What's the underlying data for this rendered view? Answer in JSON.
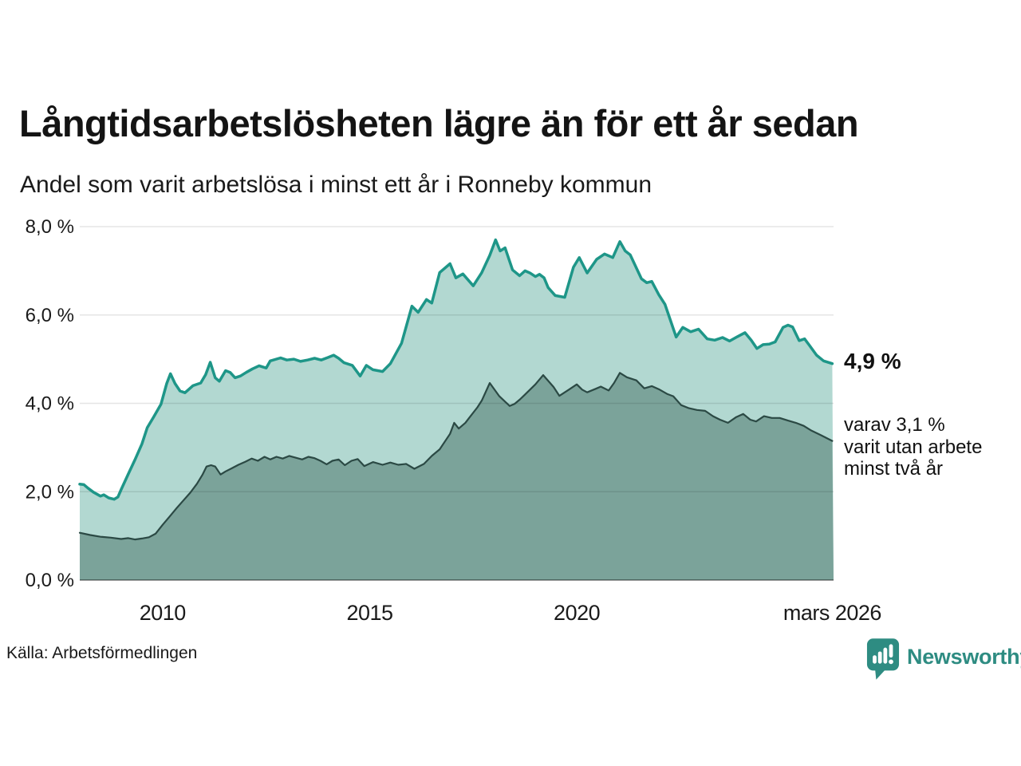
{
  "header": {
    "title": "Långtidsarbetslösheten lägre än för ett år sedan",
    "subtitle": "Andel som varit arbetslösa i minst ett år i Ronneby kommun"
  },
  "chart_data": {
    "type": "area",
    "title": "Långtidsarbetslösheten lägre än för ett år sedan",
    "subtitle": "Andel som varit arbetslösa i minst ett år i Ronneby kommun",
    "xlabel": "",
    "ylabel": "",
    "grid": true,
    "legend_position": "none",
    "x_domain": [
      2008.0,
      2026.2
    ],
    "ylim": [
      0,
      8
    ],
    "y_ticks": [
      {
        "value": 0,
        "label": "0,0 %"
      },
      {
        "value": 2,
        "label": "2,0 %"
      },
      {
        "value": 4,
        "label": "4,0 %"
      },
      {
        "value": 6,
        "label": "6,0 %"
      },
      {
        "value": 8,
        "label": "8,0 %"
      }
    ],
    "x_ticks": [
      {
        "value": 2010,
        "label": "2010"
      },
      {
        "value": 2015,
        "label": "2015"
      },
      {
        "value": 2020,
        "label": "2020"
      },
      {
        "value": 2026.17,
        "label": "mars 2026"
      }
    ],
    "colors": {
      "gridline": "rgba(0,0,0,0.10)",
      "baseline": "rgba(0,0,0,0.50)",
      "axis_text": "#1a1a1a"
    },
    "series": [
      {
        "name": "Arbetslösa minst ett år",
        "latest_value": "4,9 %",
        "line_color": "#1e9688",
        "fill_color": "#b2d8d1",
        "line_width": 3.5,
        "points": [
          [
            2008.0,
            2.17
          ],
          [
            2008.1,
            2.16
          ],
          [
            2008.2,
            2.08
          ],
          [
            2008.33,
            1.99
          ],
          [
            2008.5,
            1.9
          ],
          [
            2008.58,
            1.93
          ],
          [
            2008.7,
            1.86
          ],
          [
            2008.83,
            1.83
          ],
          [
            2008.92,
            1.88
          ],
          [
            2009.0,
            2.05
          ],
          [
            2009.17,
            2.4
          ],
          [
            2009.33,
            2.72
          ],
          [
            2009.5,
            3.08
          ],
          [
            2009.63,
            3.45
          ],
          [
            2009.79,
            3.7
          ],
          [
            2009.96,
            3.98
          ],
          [
            2010.1,
            4.45
          ],
          [
            2010.19,
            4.67
          ],
          [
            2010.3,
            4.45
          ],
          [
            2010.42,
            4.28
          ],
          [
            2010.54,
            4.24
          ],
          [
            2010.73,
            4.4
          ],
          [
            2010.92,
            4.46
          ],
          [
            2011.04,
            4.65
          ],
          [
            2011.15,
            4.93
          ],
          [
            2011.27,
            4.58
          ],
          [
            2011.37,
            4.5
          ],
          [
            2011.52,
            4.74
          ],
          [
            2011.63,
            4.7
          ],
          [
            2011.75,
            4.58
          ],
          [
            2011.88,
            4.62
          ],
          [
            2012.02,
            4.7
          ],
          [
            2012.17,
            4.78
          ],
          [
            2012.33,
            4.85
          ],
          [
            2012.5,
            4.8
          ],
          [
            2012.6,
            4.96
          ],
          [
            2012.85,
            5.03
          ],
          [
            2013.0,
            4.98
          ],
          [
            2013.17,
            5.0
          ],
          [
            2013.33,
            4.95
          ],
          [
            2013.5,
            4.98
          ],
          [
            2013.67,
            5.02
          ],
          [
            2013.83,
            4.98
          ],
          [
            2014.0,
            5.04
          ],
          [
            2014.13,
            5.09
          ],
          [
            2014.25,
            5.02
          ],
          [
            2014.38,
            4.92
          ],
          [
            2014.58,
            4.86
          ],
          [
            2014.77,
            4.62
          ],
          [
            2014.92,
            4.86
          ],
          [
            2015.08,
            4.76
          ],
          [
            2015.31,
            4.72
          ],
          [
            2015.5,
            4.9
          ],
          [
            2015.77,
            5.36
          ],
          [
            2016.02,
            6.2
          ],
          [
            2016.17,
            6.06
          ],
          [
            2016.37,
            6.35
          ],
          [
            2016.5,
            6.27
          ],
          [
            2016.69,
            6.96
          ],
          [
            2016.94,
            7.16
          ],
          [
            2017.08,
            6.84
          ],
          [
            2017.25,
            6.93
          ],
          [
            2017.5,
            6.66
          ],
          [
            2017.7,
            6.95
          ],
          [
            2017.9,
            7.35
          ],
          [
            2018.04,
            7.7
          ],
          [
            2018.15,
            7.45
          ],
          [
            2018.27,
            7.52
          ],
          [
            2018.45,
            7.02
          ],
          [
            2018.62,
            6.89
          ],
          [
            2018.75,
            7.0
          ],
          [
            2018.87,
            6.95
          ],
          [
            2019.0,
            6.87
          ],
          [
            2019.1,
            6.92
          ],
          [
            2019.21,
            6.84
          ],
          [
            2019.31,
            6.62
          ],
          [
            2019.48,
            6.44
          ],
          [
            2019.71,
            6.4
          ],
          [
            2019.92,
            7.08
          ],
          [
            2020.06,
            7.3
          ],
          [
            2020.25,
            6.95
          ],
          [
            2020.48,
            7.26
          ],
          [
            2020.67,
            7.38
          ],
          [
            2020.87,
            7.3
          ],
          [
            2021.04,
            7.66
          ],
          [
            2021.17,
            7.45
          ],
          [
            2021.29,
            7.36
          ],
          [
            2021.56,
            6.82
          ],
          [
            2021.69,
            6.73
          ],
          [
            2021.81,
            6.76
          ],
          [
            2021.98,
            6.46
          ],
          [
            2022.13,
            6.24
          ],
          [
            2022.4,
            5.5
          ],
          [
            2022.56,
            5.72
          ],
          [
            2022.75,
            5.62
          ],
          [
            2022.94,
            5.68
          ],
          [
            2023.15,
            5.46
          ],
          [
            2023.33,
            5.43
          ],
          [
            2023.52,
            5.49
          ],
          [
            2023.69,
            5.41
          ],
          [
            2023.88,
            5.51
          ],
          [
            2024.06,
            5.6
          ],
          [
            2024.21,
            5.43
          ],
          [
            2024.35,
            5.24
          ],
          [
            2024.5,
            5.33
          ],
          [
            2024.65,
            5.34
          ],
          [
            2024.79,
            5.39
          ],
          [
            2024.98,
            5.72
          ],
          [
            2025.1,
            5.77
          ],
          [
            2025.21,
            5.73
          ],
          [
            2025.37,
            5.42
          ],
          [
            2025.5,
            5.46
          ],
          [
            2025.62,
            5.31
          ],
          [
            2025.79,
            5.09
          ],
          [
            2025.96,
            4.96
          ],
          [
            2026.17,
            4.9
          ]
        ]
      },
      {
        "name": "Utan arbete minst två år",
        "latest_value": "3,1 %",
        "line_color": "#2b4944",
        "fill_color": "#7ba39a",
        "line_width": 2.2,
        "points": [
          [
            2008.0,
            1.07
          ],
          [
            2008.25,
            1.02
          ],
          [
            2008.5,
            0.98
          ],
          [
            2008.75,
            0.96
          ],
          [
            2009.0,
            0.93
          ],
          [
            2009.17,
            0.95
          ],
          [
            2009.33,
            0.92
          ],
          [
            2009.5,
            0.94
          ],
          [
            2009.67,
            0.97
          ],
          [
            2009.83,
            1.05
          ],
          [
            2010.0,
            1.25
          ],
          [
            2010.17,
            1.44
          ],
          [
            2010.33,
            1.62
          ],
          [
            2010.5,
            1.8
          ],
          [
            2010.67,
            1.98
          ],
          [
            2010.83,
            2.18
          ],
          [
            2010.96,
            2.38
          ],
          [
            2011.06,
            2.57
          ],
          [
            2011.17,
            2.6
          ],
          [
            2011.27,
            2.57
          ],
          [
            2011.4,
            2.39
          ],
          [
            2011.52,
            2.46
          ],
          [
            2011.67,
            2.53
          ],
          [
            2011.83,
            2.61
          ],
          [
            2012.0,
            2.68
          ],
          [
            2012.15,
            2.75
          ],
          [
            2012.3,
            2.7
          ],
          [
            2012.46,
            2.79
          ],
          [
            2012.6,
            2.73
          ],
          [
            2012.75,
            2.79
          ],
          [
            2012.9,
            2.75
          ],
          [
            2013.06,
            2.81
          ],
          [
            2013.21,
            2.77
          ],
          [
            2013.37,
            2.73
          ],
          [
            2013.52,
            2.79
          ],
          [
            2013.67,
            2.76
          ],
          [
            2013.81,
            2.7
          ],
          [
            2013.96,
            2.62
          ],
          [
            2014.1,
            2.7
          ],
          [
            2014.25,
            2.73
          ],
          [
            2014.4,
            2.6
          ],
          [
            2014.56,
            2.7
          ],
          [
            2014.71,
            2.74
          ],
          [
            2014.87,
            2.58
          ],
          [
            2015.08,
            2.67
          ],
          [
            2015.31,
            2.61
          ],
          [
            2015.5,
            2.66
          ],
          [
            2015.69,
            2.61
          ],
          [
            2015.88,
            2.63
          ],
          [
            2016.08,
            2.52
          ],
          [
            2016.31,
            2.63
          ],
          [
            2016.5,
            2.81
          ],
          [
            2016.69,
            2.96
          ],
          [
            2016.94,
            3.31
          ],
          [
            2017.04,
            3.56
          ],
          [
            2017.15,
            3.43
          ],
          [
            2017.31,
            3.56
          ],
          [
            2017.4,
            3.67
          ],
          [
            2017.6,
            3.91
          ],
          [
            2017.71,
            4.07
          ],
          [
            2017.9,
            4.46
          ],
          [
            2018.13,
            4.16
          ],
          [
            2018.38,
            3.94
          ],
          [
            2018.5,
            3.99
          ],
          [
            2018.63,
            4.09
          ],
          [
            2018.75,
            4.2
          ],
          [
            2019.0,
            4.43
          ],
          [
            2019.19,
            4.64
          ],
          [
            2019.44,
            4.37
          ],
          [
            2019.58,
            4.17
          ],
          [
            2019.81,
            4.31
          ],
          [
            2020.0,
            4.43
          ],
          [
            2020.13,
            4.31
          ],
          [
            2020.25,
            4.25
          ],
          [
            2020.46,
            4.33
          ],
          [
            2020.58,
            4.38
          ],
          [
            2020.77,
            4.29
          ],
          [
            2020.9,
            4.46
          ],
          [
            2021.04,
            4.69
          ],
          [
            2021.21,
            4.59
          ],
          [
            2021.44,
            4.52
          ],
          [
            2021.63,
            4.34
          ],
          [
            2021.81,
            4.39
          ],
          [
            2022.0,
            4.31
          ],
          [
            2022.19,
            4.21
          ],
          [
            2022.33,
            4.16
          ],
          [
            2022.52,
            3.96
          ],
          [
            2022.71,
            3.89
          ],
          [
            2022.9,
            3.85
          ],
          [
            2023.1,
            3.83
          ],
          [
            2023.29,
            3.71
          ],
          [
            2023.46,
            3.63
          ],
          [
            2023.65,
            3.56
          ],
          [
            2023.85,
            3.69
          ],
          [
            2024.02,
            3.76
          ],
          [
            2024.19,
            3.63
          ],
          [
            2024.33,
            3.59
          ],
          [
            2024.52,
            3.71
          ],
          [
            2024.71,
            3.67
          ],
          [
            2024.9,
            3.67
          ],
          [
            2025.1,
            3.61
          ],
          [
            2025.29,
            3.56
          ],
          [
            2025.48,
            3.49
          ],
          [
            2025.67,
            3.38
          ],
          [
            2025.87,
            3.29
          ],
          [
            2026.0,
            3.23
          ],
          [
            2026.17,
            3.15
          ]
        ]
      }
    ]
  },
  "annotations": {
    "latest_total": "4,9 %",
    "latest_two_year": "varav 3,1 %\nvarit utan arbete\nminst två år"
  },
  "footer": {
    "source": "Källa: Arbetsförmedlingen",
    "brand": "Newsworthy"
  }
}
